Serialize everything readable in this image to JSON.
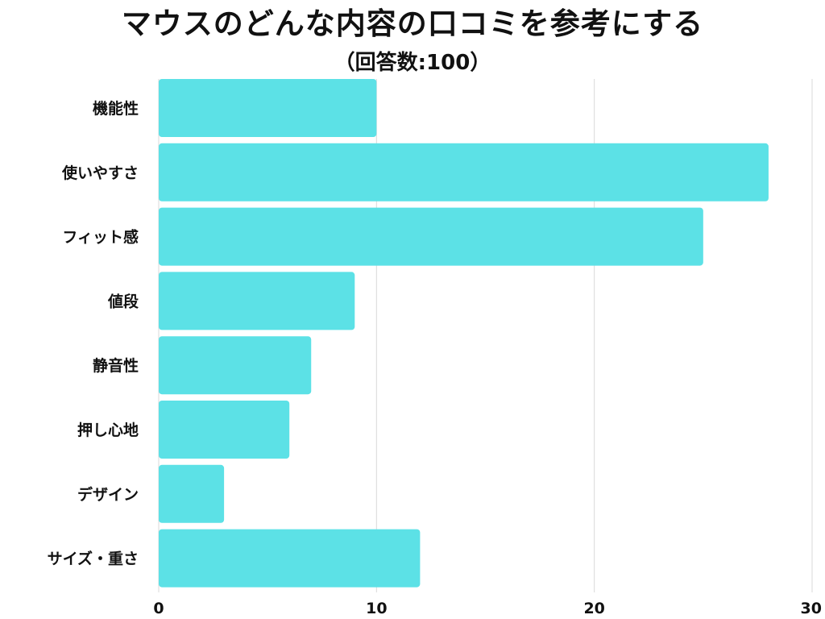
{
  "chart_data": {
    "type": "bar",
    "orientation": "horizontal",
    "title": "マウスのどんな内容の口コミを参考にする",
    "subtitle": "（回答数:100）",
    "categories": [
      "機能性",
      "使いやすさ",
      "フィット感",
      "値段",
      "静音性",
      "押し心地",
      "デザイン",
      "サイズ・重さ"
    ],
    "values": [
      10,
      28,
      25,
      9,
      7,
      6,
      3,
      12
    ],
    "xlim": [
      0,
      30
    ],
    "xticks": [
      0,
      10,
      20,
      30
    ],
    "grid": true,
    "legend": "none",
    "colors": {
      "bar": "#5ce1e6",
      "grid": "#d9d9d9",
      "text": "#111111"
    }
  }
}
